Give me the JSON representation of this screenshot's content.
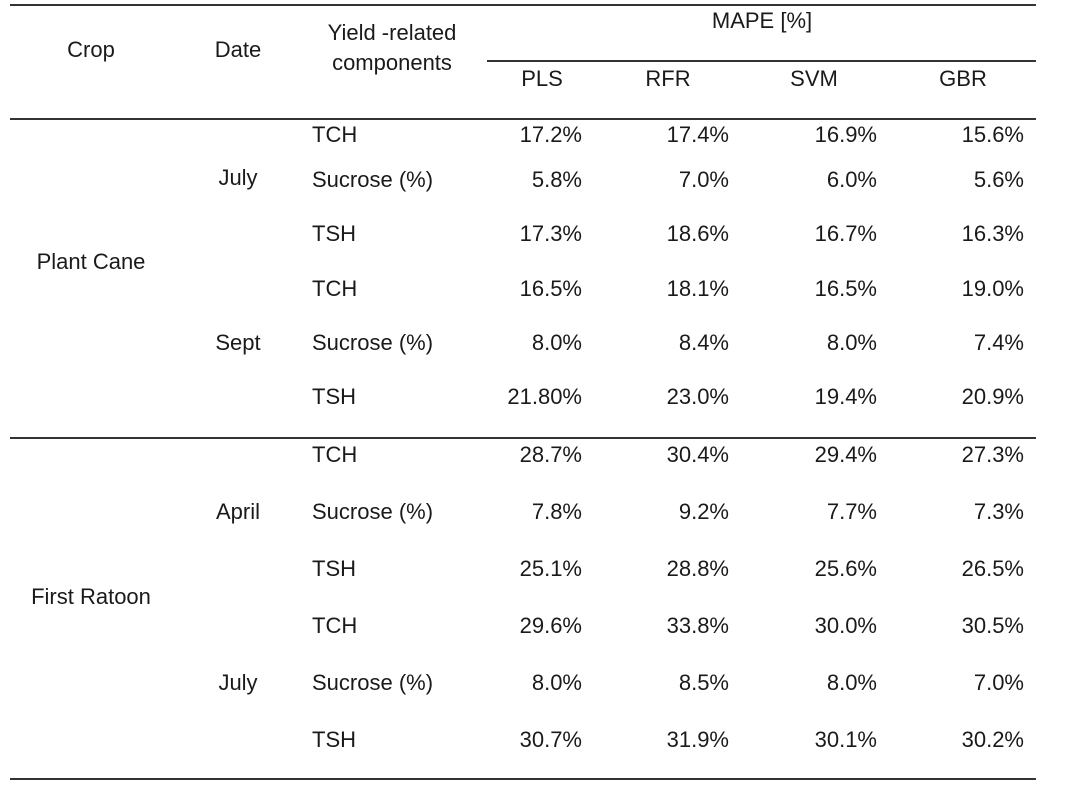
{
  "header": {
    "crop": "Crop",
    "date": "Date",
    "component_line1": "Yield -related",
    "component_line2": "components",
    "mape": "MAPE [%]",
    "models": [
      "PLS",
      "RFR",
      "SVM",
      "GBR"
    ]
  },
  "groups": [
    {
      "crop": "Plant Cane",
      "dates": [
        {
          "date": "July",
          "rows": [
            {
              "component": "TCH",
              "values": [
                "17.2%",
                "17.4%",
                "16.9%",
                "15.6%"
              ]
            },
            {
              "component": "Sucrose (%)",
              "values": [
                "5.8%",
                "7.0%",
                "6.0%",
                "5.6%"
              ]
            },
            {
              "component": "TSH",
              "values": [
                "17.3%",
                "18.6%",
                "16.7%",
                "16.3%"
              ]
            }
          ]
        },
        {
          "date": "Sept",
          "rows": [
            {
              "component": "TCH",
              "values": [
                "16.5%",
                "18.1%",
                "16.5%",
                "19.0%"
              ]
            },
            {
              "component": "Sucrose (%)",
              "values": [
                "8.0%",
                "8.4%",
                "8.0%",
                "7.4%"
              ]
            },
            {
              "component": "TSH",
              "values": [
                "21.80%",
                "23.0%",
                "19.4%",
                "20.9%"
              ]
            }
          ]
        }
      ]
    },
    {
      "crop": "First Ratoon",
      "dates": [
        {
          "date": "April",
          "rows": [
            {
              "component": "TCH",
              "values": [
                "28.7%",
                "30.4%",
                "29.4%",
                "27.3%"
              ]
            },
            {
              "component": "Sucrose (%)",
              "values": [
                "7.8%",
                "9.2%",
                "7.7%",
                "7.3%"
              ]
            },
            {
              "component": "TSH",
              "values": [
                "25.1%",
                "28.8%",
                "25.6%",
                "26.5%"
              ]
            }
          ]
        },
        {
          "date": "July",
          "rows": [
            {
              "component": "TCH",
              "values": [
                "29.6%",
                "33.8%",
                "30.0%",
                "30.5%"
              ]
            },
            {
              "component": "Sucrose (%)",
              "values": [
                "8.0%",
                "8.5%",
                "8.0%",
                "7.0%"
              ]
            },
            {
              "component": "TSH",
              "values": [
                "30.7%",
                "31.9%",
                "30.1%",
                "30.2%"
              ]
            }
          ]
        }
      ]
    }
  ]
}
